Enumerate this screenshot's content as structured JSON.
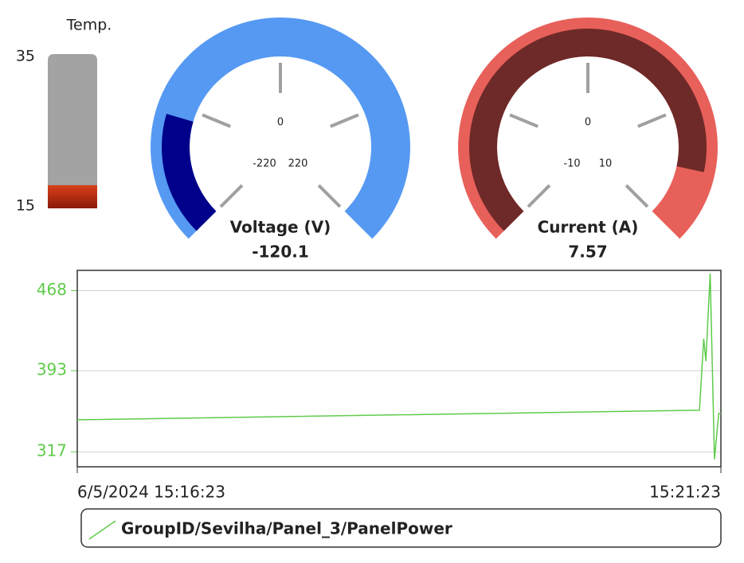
{
  "chart_data": [
    {
      "type": "thermometer",
      "title": "Temp.",
      "ylim": [
        15,
        35
      ],
      "yticks": [
        15,
        35
      ],
      "value": 18,
      "color": "#d9401a",
      "track_color": "#a3a3a3"
    },
    {
      "type": "gauge",
      "title": "Voltage (V)",
      "value": -120.1,
      "range": [
        -220,
        220
      ],
      "ticks": [
        -220,
        0,
        220
      ],
      "minor_ticks": [
        -110,
        110
      ],
      "color": "#00008b",
      "track_color": "#5599f2"
    },
    {
      "type": "gauge",
      "title": "Current (A)",
      "value": 7.57,
      "range": [
        -10,
        10
      ],
      "ticks": [
        -10,
        0,
        10
      ],
      "minor_ticks": [
        -5,
        5
      ],
      "color": "#6e2a28",
      "track_color": "#e8605a"
    },
    {
      "type": "line",
      "x": [
        "15:16:23",
        "15:21:13",
        "15:21:15",
        "15:21:16",
        "15:21:18",
        "15:21:20",
        "15:21:22",
        "15:21:23"
      ],
      "series": [
        {
          "name": "GroupID/Sevilha/Panel_3/PanelPower",
          "color": "#5ecb4a",
          "values": [
            347,
            356,
            423,
            402,
            484,
            310,
            353,
            353
          ]
        }
      ],
      "xlim": [
        "15:16:23",
        "15:21:23"
      ],
      "xticks": [
        {
          "value": "15:16:23",
          "label": "6/5/2024 15:16:23"
        },
        "15:21:23"
      ],
      "ylim": [
        303,
        487
      ],
      "yticks": [
        317,
        393,
        468
      ],
      "grid": true
    }
  ]
}
